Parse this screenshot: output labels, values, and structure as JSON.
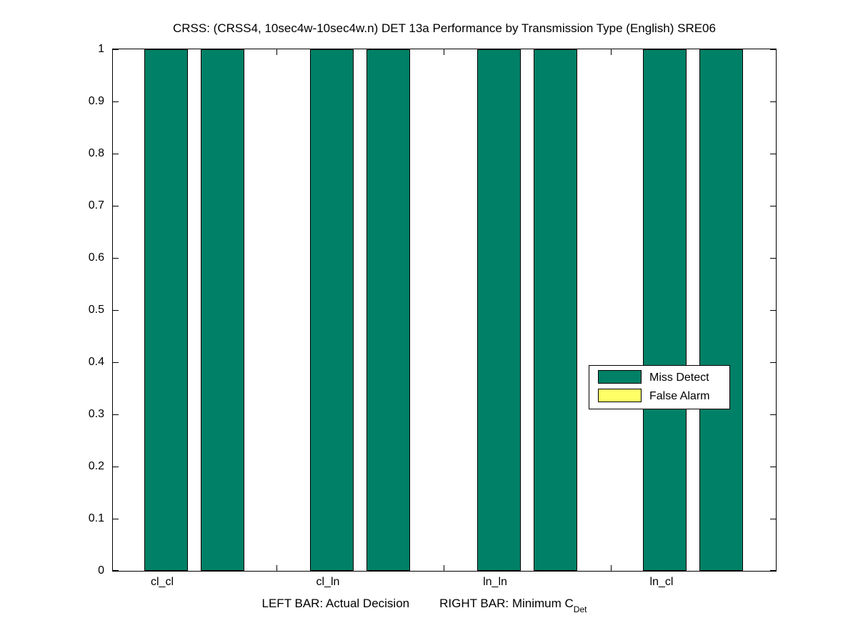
{
  "chart_data": {
    "type": "bar",
    "title": "CRSS: (CRSS4, 10sec4w-10sec4w.n) DET 13a Performance by Transmission Type (English) SRE06",
    "categories": [
      "cl_cl",
      "cl_ln",
      "ln_ln",
      "ln_cl"
    ],
    "bar_semantics": {
      "left_bar": "Actual Decision",
      "right_bar": "Minimum C_Det"
    },
    "series": [
      {
        "name": "Miss Detect",
        "color": "#008066",
        "left_bar_values": [
          1.0,
          1.0,
          1.0,
          1.0
        ],
        "right_bar_values": [
          1.0,
          1.0,
          1.0,
          1.0
        ]
      },
      {
        "name": "False Alarm",
        "color": "#FFFF66",
        "left_bar_values": [
          0.0,
          0.0,
          0.0,
          0.0
        ],
        "right_bar_values": [
          0.0,
          0.0,
          0.0,
          0.0
        ]
      }
    ],
    "ylim": [
      0,
      1
    ],
    "yticks": [
      "0",
      "0.1",
      "0.2",
      "0.3",
      "0.4",
      "0.5",
      "0.6",
      "0.7",
      "0.8",
      "0.9",
      "1"
    ],
    "xlabel": "LEFT BAR: Actual Decision    RIGHT BAR: Minimum C_Det",
    "xlabel_parts": {
      "left": "LEFT BAR: Actual Decision",
      "right": "RIGHT BAR: Minimum C",
      "subscript": "Det"
    },
    "legend": {
      "position": "middle-right",
      "entries": [
        "Miss Detect",
        "False Alarm"
      ]
    },
    "grid": false,
    "axis_color": "#000000",
    "plot_background": "#ffffff"
  }
}
